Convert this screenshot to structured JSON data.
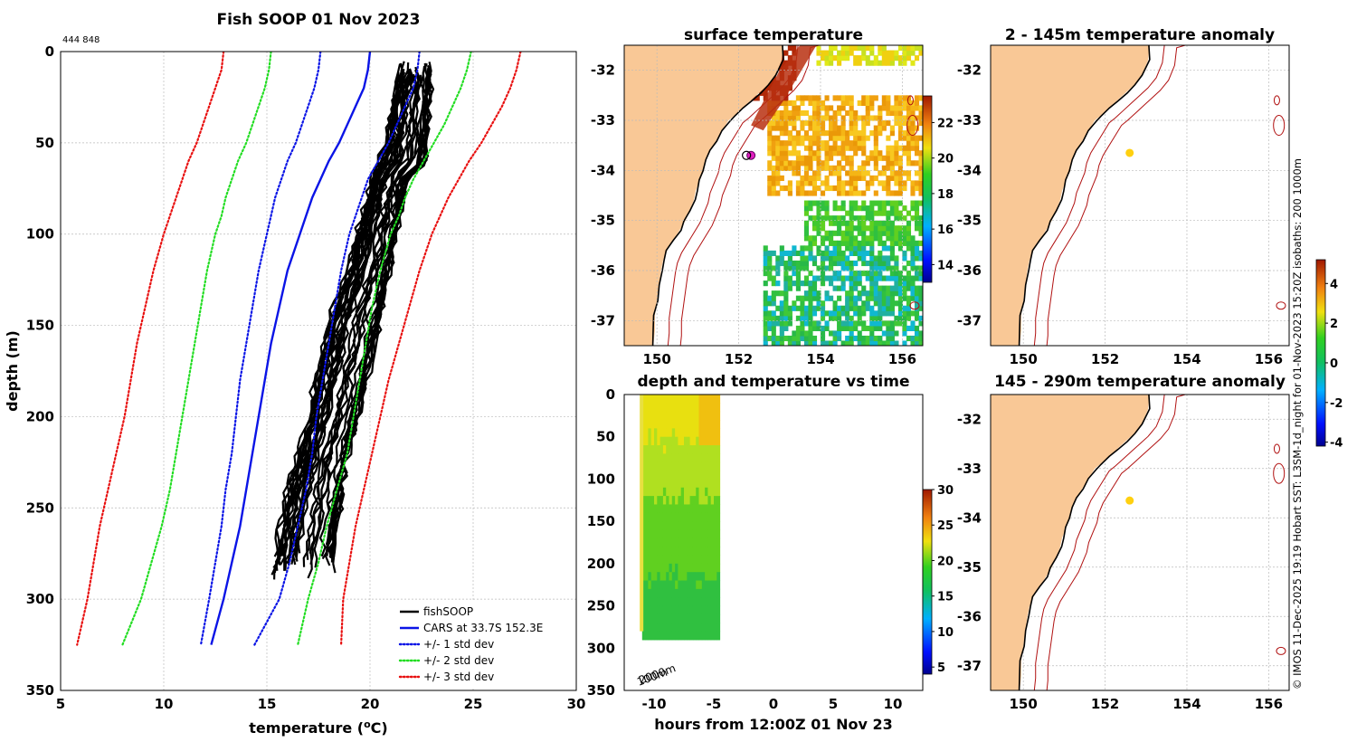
{
  "chart_data": [
    {
      "type": "line",
      "title": "Fish SOOP 01 Nov 2023",
      "id_label": "444 848",
      "xlabel": "temperature (",
      "xlabel_sup": "o",
      "xlabel_unit": "C)",
      "ylabel": "depth (m)",
      "xlim": [
        5,
        30
      ],
      "ylim": [
        0,
        350
      ],
      "xticks": [
        5,
        10,
        15,
        20,
        25,
        30
      ],
      "yticks": [
        0,
        50,
        100,
        150,
        200,
        250,
        300,
        350
      ],
      "depths": [
        0,
        10,
        20,
        30,
        40,
        50,
        60,
        70,
        80,
        90,
        100,
        120,
        140,
        160,
        180,
        200,
        220,
        240,
        260,
        280,
        300,
        325
      ],
      "series": [
        {
          "name": "fishSOOP",
          "color": "#000000",
          "style": "solid",
          "kind": "profiles"
        },
        {
          "name": "CARS at 33.7S 152.3E",
          "color": "#0a14e6",
          "style": "solid",
          "values": [
            20.0,
            19.9,
            19.7,
            19.3,
            18.9,
            18.5,
            18.0,
            17.6,
            17.2,
            16.9,
            16.6,
            16.0,
            15.6,
            15.2,
            14.9,
            14.6,
            14.3,
            14.0,
            13.7,
            13.3,
            12.9,
            12.3
          ]
        },
        {
          "name": "+/- 1 std dev",
          "color": "#0a14e6",
          "style": "dotted",
          "values_low": [
            17.6,
            17.5,
            17.3,
            17.0,
            16.7,
            16.4,
            16.0,
            15.7,
            15.4,
            15.2,
            15.0,
            14.6,
            14.3,
            14.0,
            13.7,
            13.5,
            13.3,
            13.0,
            12.8,
            12.5,
            12.2,
            11.8
          ],
          "values_high": [
            22.4,
            22.3,
            22.1,
            21.7,
            21.3,
            20.9,
            20.4,
            19.9,
            19.6,
            19.3,
            19.0,
            18.6,
            18.3,
            18.0,
            17.7,
            17.4,
            17.2,
            16.9,
            16.5,
            16.1,
            15.6,
            14.4
          ]
        },
        {
          "name": "+/- 2 std dev",
          "color": "#22dd22",
          "style": "dotted",
          "values_low": [
            15.2,
            15.1,
            14.9,
            14.6,
            14.3,
            14.0,
            13.6,
            13.3,
            13.0,
            12.8,
            12.5,
            12.1,
            11.8,
            11.5,
            11.2,
            10.9,
            10.6,
            10.3,
            9.9,
            9.4,
            8.9,
            8.0
          ],
          "values_high": [
            24.9,
            24.7,
            24.4,
            24.0,
            23.6,
            23.1,
            22.6,
            22.1,
            21.7,
            21.4,
            21.0,
            20.5,
            20.1,
            19.8,
            19.5,
            19.2,
            18.9,
            18.4,
            17.9,
            17.5,
            17.0,
            16.5
          ]
        },
        {
          "name": "+/- 3 std dev",
          "color": "#e81010",
          "style": "dotted",
          "values_low": [
            12.9,
            12.8,
            12.5,
            12.2,
            11.9,
            11.6,
            11.2,
            10.9,
            10.6,
            10.3,
            10.0,
            9.5,
            9.1,
            8.7,
            8.4,
            8.1,
            7.7,
            7.3,
            6.9,
            6.6,
            6.3,
            5.8
          ],
          "values_high": [
            27.3,
            27.1,
            26.8,
            26.4,
            25.9,
            25.4,
            24.8,
            24.3,
            23.8,
            23.4,
            23.0,
            22.4,
            21.9,
            21.4,
            20.9,
            20.5,
            20.1,
            19.7,
            19.3,
            19.0,
            18.7,
            18.6
          ]
        }
      ],
      "fishsoop_band": {
        "depths": [
          5,
          30,
          50,
          60,
          70,
          90,
          120,
          150,
          200,
          220,
          240,
          260,
          280,
          290
        ],
        "low": [
          21.5,
          21.0,
          20.8,
          20.4,
          20.1,
          19.6,
          18.9,
          17.9,
          17.0,
          16.5,
          16.0,
          15.6,
          15.3,
          15.0
        ],
        "high": [
          23.0,
          22.9,
          22.8,
          22.8,
          21.8,
          21.5,
          21.0,
          20.5,
          19.5,
          19.0,
          18.7,
          18.5,
          18.3,
          18.5
        ]
      },
      "legend_position": "bottom-right"
    },
    {
      "type": "heatmap",
      "title": "surface temperature",
      "xlim": [
        149.2,
        156.5
      ],
      "ylim": [
        -37.5,
        -31.5
      ],
      "xticks": [
        150,
        152,
        154,
        156
      ],
      "yticks": [
        -32,
        -33,
        -34,
        -35,
        -36,
        -37
      ],
      "colorbar": {
        "min": 13,
        "max": 23.5,
        "ticks": [
          14,
          16,
          18,
          20,
          22
        ]
      },
      "marker": {
        "lon": 152.3,
        "lat": -33.7
      }
    },
    {
      "type": "heatmap",
      "title": "depth and temperature vs time",
      "xlabel": "hours from 12:00Z 01 Nov 23",
      "xlim": [
        -12.5,
        12.5
      ],
      "ylim": [
        0,
        350
      ],
      "xticks": [
        -10,
        -5,
        0,
        5,
        10
      ],
      "yticks": [
        0,
        50,
        100,
        150,
        200,
        250,
        300,
        350
      ],
      "colorbar": {
        "min": 4,
        "max": 30,
        "ticks": [
          5,
          10,
          15,
          20,
          25,
          30
        ]
      },
      "data_extent": {
        "t_start": -11,
        "t_end": -4.5,
        "depth_max": 290
      },
      "annotation": "2000m",
      "annotation_overlap": "100m"
    },
    {
      "type": "heatmap",
      "title": "2 - 145m temperature anomaly",
      "xlim": [
        149.2,
        156.5
      ],
      "ylim": [
        -37.5,
        -31.5
      ],
      "xticks": [
        150,
        152,
        154,
        156
      ],
      "yticks": [
        -32,
        -33,
        -34,
        -35,
        -36,
        -37
      ],
      "marker": {
        "lon": 152.6,
        "lat": -33.65
      }
    },
    {
      "type": "heatmap",
      "title": "145 - 290m temperature anomaly",
      "xlim": [
        149.2,
        156.5
      ],
      "ylim": [
        -37.5,
        -31.5
      ],
      "xticks": [
        150,
        152,
        154,
        156
      ],
      "yticks": [
        -32,
        -33,
        -34,
        -35,
        -36,
        -37
      ],
      "marker": {
        "lon": 152.6,
        "lat": -33.65
      },
      "colorbar": {
        "min": -4.2,
        "max": 5.2,
        "ticks": [
          -4,
          -2,
          0,
          2,
          4
        ]
      }
    }
  ],
  "credit": "© IMOS 11-Dec-2025 19:19 Hobart SST: L3SM-1d_night for 01-Nov-2023 15:20Z isobaths: 200  1000m",
  "colors": {
    "land": "#f9c896",
    "coast": "#000000",
    "isobath": "#b01010",
    "marker": "#ffd010"
  }
}
